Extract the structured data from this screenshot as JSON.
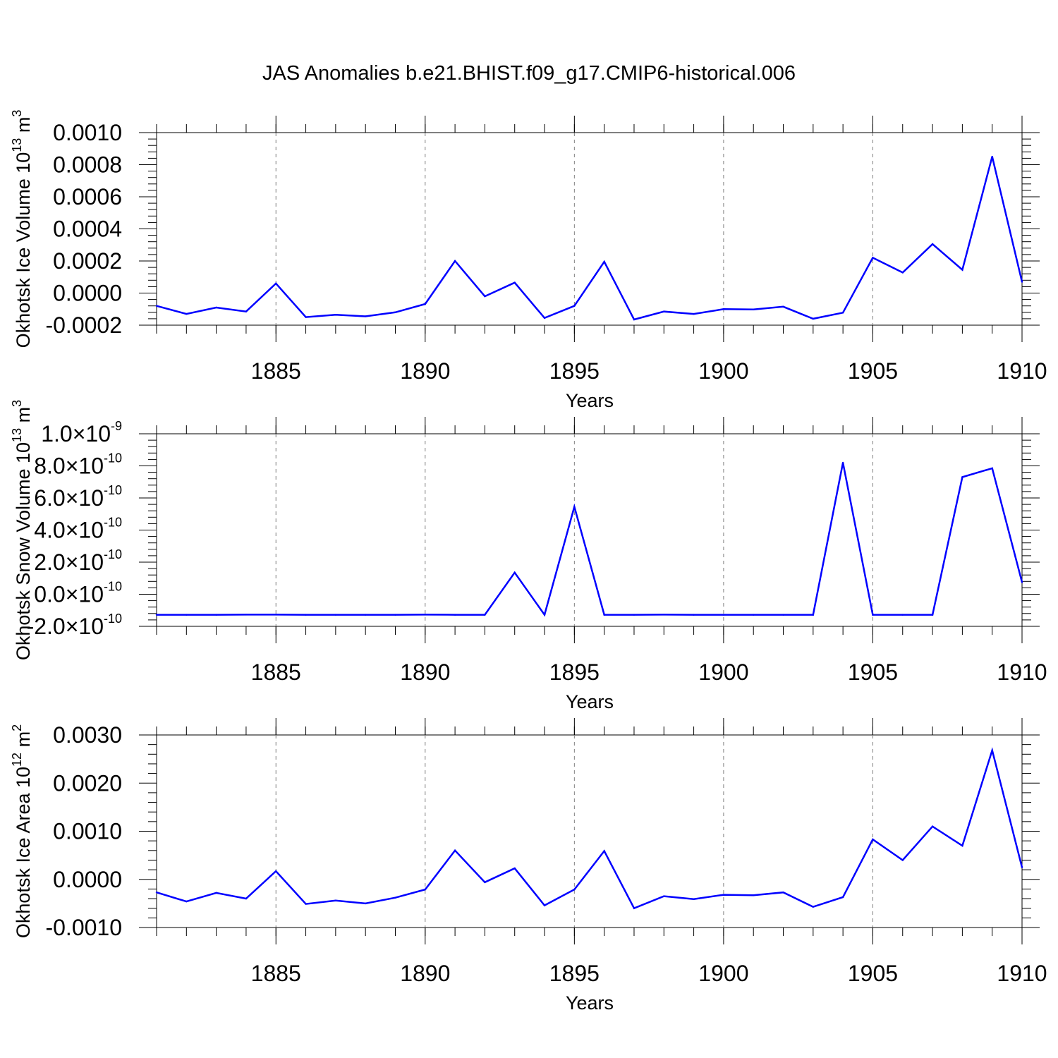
{
  "title": "JAS Anomalies b.e21.BHIST.f09_g17.CMIP6-historical.006",
  "colors": {
    "line": "#0000ff",
    "axis": "#000000",
    "grid": "#808080"
  },
  "chart_data": [
    {
      "type": "line",
      "name": "ice-volume",
      "ylabel": "Okhotsk Ice Volume 10",
      "ylabel_exp": "13",
      "ylabel_unit": " m",
      "ylabel_unit_exp": "3",
      "xlabel": "Years",
      "xlim": [
        1881,
        1910
      ],
      "ylim": [
        -0.0002,
        0.001
      ],
      "xticks": [
        "1885",
        "1890",
        "1895",
        "1900",
        "1905",
        "1910"
      ],
      "yticks": [
        {
          "value": 0.001,
          "label": "0.0010"
        },
        {
          "value": 0.0008,
          "label": "0.0008"
        },
        {
          "value": 0.0006,
          "label": "0.0006"
        },
        {
          "value": 0.0004,
          "label": "0.0004"
        },
        {
          "value": 0.0002,
          "label": "0.0002"
        },
        {
          "value": 0.0,
          "label": "0.0000"
        },
        {
          "value": -0.0002,
          "label": "-0.0002"
        }
      ],
      "x": [
        1881,
        1882,
        1883,
        1884,
        1885,
        1886,
        1887,
        1888,
        1889,
        1890,
        1891,
        1892,
        1893,
        1894,
        1895,
        1896,
        1897,
        1898,
        1899,
        1900,
        1901,
        1902,
        1903,
        1904,
        1905,
        1906,
        1907,
        1908,
        1909,
        1910
      ],
      "y": [
        -8e-05,
        -0.00013,
        -9e-05,
        -0.000115,
        6e-05,
        -0.00015,
        -0.000135,
        -0.000145,
        -0.00012,
        -6.8e-05,
        0.0002,
        -2e-05,
        6.5e-05,
        -0.000155,
        -8e-05,
        0.000195,
        -0.000165,
        -0.000115,
        -0.00013,
        -0.0001,
        -0.000102,
        -8.5e-05,
        -0.00016,
        -0.000122,
        0.00022,
        0.000128,
        0.000305,
        0.000145,
        0.00085,
        7e-05
      ]
    },
    {
      "type": "line",
      "name": "snow-volume",
      "ylabel": "Okhotsk Snow Volume 10",
      "ylabel_exp": "13",
      "ylabel_unit": " m",
      "ylabel_unit_exp": "3",
      "xlabel": "Years",
      "xlim": [
        1881,
        1910
      ],
      "ylim": [
        -2e-10,
        1e-09
      ],
      "xticks": [
        "1885",
        "1890",
        "1895",
        "1900",
        "1905",
        "1910"
      ],
      "yticks": [
        {
          "value": 1e-09,
          "mant": "1.0",
          "exp": "-9"
        },
        {
          "value": 8e-10,
          "mant": "8.0",
          "exp": "-10"
        },
        {
          "value": 6e-10,
          "mant": "6.0",
          "exp": "-10"
        },
        {
          "value": 4e-10,
          "mant": "4.0",
          "exp": "-10"
        },
        {
          "value": 2e-10,
          "mant": "2.0",
          "exp": "-10"
        },
        {
          "value": 0,
          "mant": "0.0",
          "exp": "-10"
        },
        {
          "value": -2e-10,
          "mant": "-2.0",
          "exp": "-10"
        }
      ],
      "x": [
        1881,
        1882,
        1883,
        1884,
        1885,
        1886,
        1887,
        1888,
        1889,
        1890,
        1891,
        1892,
        1893,
        1894,
        1895,
        1896,
        1897,
        1898,
        1899,
        1900,
        1901,
        1902,
        1903,
        1904,
        1905,
        1906,
        1907,
        1908,
        1909,
        1910
      ],
      "y": [
        -1.28e-10,
        -1.28e-10,
        -1.28e-10,
        -1.27e-10,
        -1.27e-10,
        -1.28e-10,
        -1.28e-10,
        -1.28e-10,
        -1.28e-10,
        -1.27e-10,
        -1.28e-10,
        -1.28e-10,
        1.35e-10,
        -1.28e-10,
        5.45e-10,
        -1.28e-10,
        -1.28e-10,
        -1.27e-10,
        -1.28e-10,
        -1.28e-10,
        -1.28e-10,
        -1.28e-10,
        -1.28e-10,
        8.2e-10,
        -1.28e-10,
        -1.28e-10,
        -1.28e-10,
        7.3e-10,
        7.85e-10,
        7.5e-11
      ]
    },
    {
      "type": "line",
      "name": "ice-area",
      "ylabel": "Okhotsk Ice Area 10",
      "ylabel_exp": "12",
      "ylabel_unit": " m",
      "ylabel_unit_exp": "2",
      "xlabel": "Years",
      "xlim": [
        1881,
        1910
      ],
      "ylim": [
        -0.001,
        0.003
      ],
      "xticks": [
        "1885",
        "1890",
        "1895",
        "1900",
        "1905",
        "1910"
      ],
      "yticks": [
        {
          "value": 0.003,
          "label": "0.0030"
        },
        {
          "value": 0.002,
          "label": "0.0020"
        },
        {
          "value": 0.001,
          "label": "0.0010"
        },
        {
          "value": 0.0,
          "label": "0.0000"
        },
        {
          "value": -0.001,
          "label": "-0.0010"
        }
      ],
      "x": [
        1881,
        1882,
        1883,
        1884,
        1885,
        1886,
        1887,
        1888,
        1889,
        1890,
        1891,
        1892,
        1893,
        1894,
        1895,
        1896,
        1897,
        1898,
        1899,
        1900,
        1901,
        1902,
        1903,
        1904,
        1905,
        1906,
        1907,
        1908,
        1909,
        1910
      ],
      "y": [
        -0.00027,
        -0.00046,
        -0.00028,
        -0.0004,
        0.00017,
        -0.00051,
        -0.00044,
        -0.0005,
        -0.00038,
        -0.00021,
        0.0006,
        -6e-05,
        0.00023,
        -0.00054,
        -0.00021,
        0.00059,
        -0.0006,
        -0.00035,
        -0.00041,
        -0.00032,
        -0.00033,
        -0.00027,
        -0.00057,
        -0.00037,
        0.00083,
        0.0004,
        0.0011,
        0.0007,
        0.00268,
        0.00025
      ]
    }
  ]
}
